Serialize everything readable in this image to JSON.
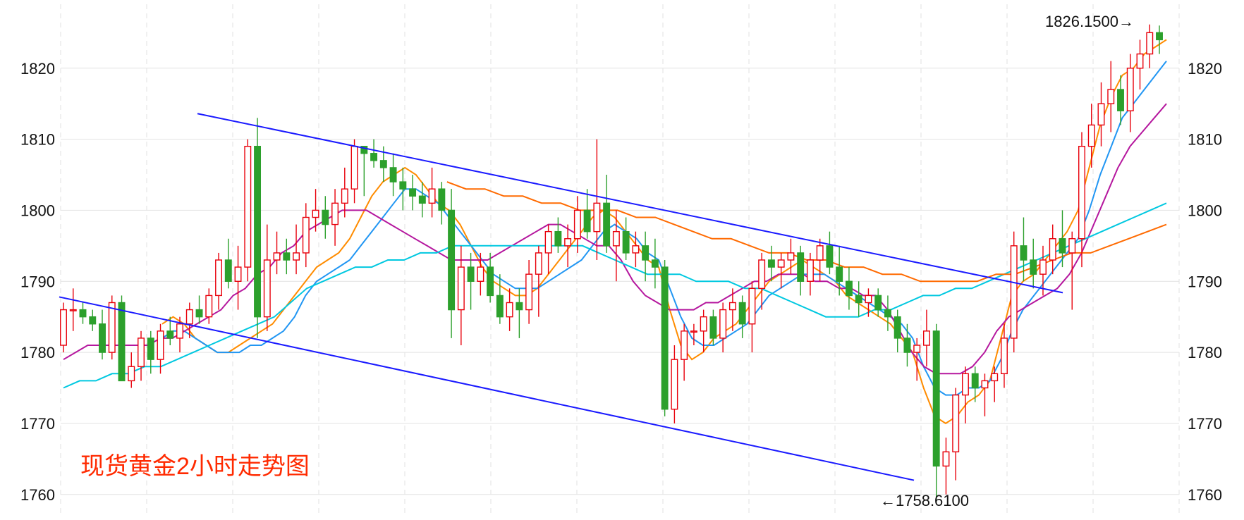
{
  "chart_data": {
    "type": "candlestick",
    "title": "现货黄金2小时走势图",
    "y_axis": {
      "min": 1757,
      "max": 1829,
      "ticks": [
        1760,
        1770,
        1780,
        1790,
        1800,
        1810,
        1820
      ],
      "tick_labels": [
        "1760",
        "1770",
        "1780",
        "1790",
        "1800",
        "1810",
        "1820"
      ],
      "grid": true
    },
    "annotations": {
      "high_label": "1826.1500→",
      "low_label": "←1758.6100",
      "high_value": 1826.15,
      "low_value": 1758.61
    },
    "colors": {
      "up": "#e8000b",
      "down": "#2ca02c",
      "trend": "#1a1aff",
      "grid": "#e2e2e2",
      "title": "#ff2a00",
      "ma": [
        "#ff8c00",
        "#2196f3",
        "#b5179e",
        "#00c8e0",
        "#ff6a00"
      ]
    },
    "trendlines": [
      {
        "name": "upper",
        "from": {
          "bar": 0,
          "value": 1813.6
        },
        "to": {
          "bar": 137,
          "value": 1788.4
        }
      },
      {
        "name": "lower",
        "from": {
          "bar": -20,
          "value": 1787.8
        },
        "to": {
          "bar": 58,
          "value": 1762.0
        }
      }
    ],
    "candles_ohlc": [
      [
        1781,
        1787,
        1780,
        1786
      ],
      [
        1786,
        1789,
        1783,
        1786
      ],
      [
        1786,
        1787,
        1784,
        1785
      ],
      [
        1785,
        1786,
        1783,
        1784
      ],
      [
        1784,
        1786,
        1779,
        1780
      ],
      [
        1780,
        1788,
        1779,
        1787
      ],
      [
        1787,
        1788,
        1776,
        1776
      ],
      [
        1776,
        1780,
        1775,
        1778
      ],
      [
        1778,
        1783,
        1776,
        1782
      ],
      [
        1782,
        1783,
        1777,
        1779
      ],
      [
        1779,
        1784,
        1777,
        1783
      ],
      [
        1783,
        1785,
        1781,
        1782
      ],
      [
        1782,
        1785,
        1780,
        1784
      ],
      [
        1784,
        1787,
        1782,
        1786
      ],
      [
        1786,
        1788,
        1784,
        1785
      ],
      [
        1785,
        1789,
        1784,
        1788
      ],
      [
        1788,
        1794,
        1786,
        1793
      ],
      [
        1793,
        1796,
        1789,
        1790
      ],
      [
        1790,
        1795,
        1786,
        1792
      ],
      [
        1792,
        1810,
        1790,
        1809
      ],
      [
        1809,
        1813,
        1782,
        1785
      ],
      [
        1785,
        1798,
        1783,
        1793
      ],
      [
        1793,
        1797,
        1791,
        1794
      ],
      [
        1794,
        1796,
        1791,
        1793
      ],
      [
        1793,
        1798,
        1791,
        1794
      ],
      [
        1794,
        1801,
        1792,
        1799
      ],
      [
        1799,
        1803,
        1797,
        1800
      ],
      [
        1800,
        1802,
        1796,
        1798
      ],
      [
        1798,
        1803,
        1795,
        1801
      ],
      [
        1801,
        1806,
        1799,
        1803
      ],
      [
        1803,
        1810,
        1801,
        1809
      ],
      [
        1809,
        1808,
        1802,
        1808
      ],
      [
        1808,
        1810,
        1806,
        1807
      ],
      [
        1807,
        1809,
        1804,
        1806
      ],
      [
        1806,
        1808,
        1802,
        1804
      ],
      [
        1804,
        1806,
        1800,
        1803
      ],
      [
        1803,
        1805,
        1800,
        1802
      ],
      [
        1802,
        1804,
        1799,
        1801
      ],
      [
        1801,
        1806,
        1799,
        1803
      ],
      [
        1803,
        1804,
        1798,
        1800
      ],
      [
        1800,
        1803,
        1782,
        1786
      ],
      [
        1786,
        1795,
        1781,
        1792
      ],
      [
        1792,
        1794,
        1786,
        1790
      ],
      [
        1790,
        1794,
        1788,
        1792
      ],
      [
        1792,
        1794,
        1787,
        1788
      ],
      [
        1788,
        1791,
        1784,
        1785
      ],
      [
        1785,
        1789,
        1783,
        1787
      ],
      [
        1787,
        1789,
        1782,
        1786
      ],
      [
        1786,
        1793,
        1784,
        1791
      ],
      [
        1791,
        1795,
        1785,
        1794
      ],
      [
        1794,
        1798,
        1791,
        1797
      ],
      [
        1797,
        1799,
        1794,
        1795
      ],
      [
        1795,
        1798,
        1792,
        1796
      ],
      [
        1796,
        1802,
        1794,
        1800
      ],
      [
        1800,
        1803,
        1796,
        1797
      ],
      [
        1797,
        1810,
        1793,
        1801
      ],
      [
        1801,
        1805,
        1794,
        1795
      ],
      [
        1795,
        1800,
        1790,
        1797
      ],
      [
        1797,
        1799,
        1793,
        1794
      ],
      [
        1794,
        1797,
        1792,
        1795
      ],
      [
        1795,
        1797,
        1790,
        1793
      ],
      [
        1793,
        1796,
        1789,
        1792
      ],
      [
        1792,
        1793,
        1771,
        1772
      ],
      [
        1772,
        1781,
        1770,
        1779
      ],
      [
        1779,
        1784,
        1776,
        1783
      ],
      [
        1783,
        1784,
        1781,
        1783
      ],
      [
        1783,
        1786,
        1780,
        1785
      ],
      [
        1785,
        1786,
        1781,
        1782
      ],
      [
        1782,
        1787,
        1780,
        1786
      ],
      [
        1786,
        1789,
        1783,
        1787
      ],
      [
        1787,
        1788,
        1782,
        1784
      ],
      [
        1784,
        1790,
        1780,
        1789
      ],
      [
        1789,
        1794,
        1786,
        1793
      ],
      [
        1793,
        1795,
        1790,
        1792
      ],
      [
        1792,
        1794,
        1789,
        1793
      ],
      [
        1793,
        1796,
        1791,
        1794
      ],
      [
        1794,
        1795,
        1788,
        1790
      ],
      [
        1790,
        1794,
        1788,
        1793
      ],
      [
        1793,
        1796,
        1790,
        1795
      ],
      [
        1795,
        1797,
        1791,
        1792
      ],
      [
        1792,
        1795,
        1788,
        1790
      ],
      [
        1790,
        1792,
        1786,
        1788
      ],
      [
        1788,
        1790,
        1785,
        1787
      ],
      [
        1787,
        1789,
        1785,
        1788
      ],
      [
        1788,
        1789,
        1785,
        1786
      ],
      [
        1786,
        1788,
        1783,
        1785
      ],
      [
        1785,
        1786,
        1780,
        1782
      ],
      [
        1782,
        1784,
        1778,
        1780
      ],
      [
        1780,
        1782,
        1776,
        1781
      ],
      [
        1781,
        1786,
        1778,
        1783
      ],
      [
        1783,
        1784,
        1759,
        1764
      ],
      [
        1764,
        1768,
        1760,
        1766
      ],
      [
        1766,
        1775,
        1762,
        1774
      ],
      [
        1774,
        1778,
        1770,
        1777
      ],
      [
        1777,
        1778,
        1773,
        1775
      ],
      [
        1775,
        1777,
        1771,
        1776
      ],
      [
        1776,
        1778,
        1773,
        1777
      ],
      [
        1777,
        1784,
        1775,
        1782
      ],
      [
        1782,
        1797,
        1780,
        1795
      ],
      [
        1795,
        1799,
        1790,
        1793
      ],
      [
        1793,
        1796,
        1789,
        1791
      ],
      [
        1791,
        1795,
        1788,
        1793
      ],
      [
        1793,
        1798,
        1791,
        1796
      ],
      [
        1796,
        1800,
        1792,
        1794
      ],
      [
        1794,
        1797,
        1786,
        1796
      ],
      [
        1796,
        1811,
        1792,
        1809
      ],
      [
        1809,
        1815,
        1806,
        1812
      ],
      [
        1812,
        1818,
        1809,
        1815
      ],
      [
        1815,
        1821,
        1811,
        1817
      ],
      [
        1817,
        1819,
        1812,
        1814
      ],
      [
        1814,
        1822,
        1811,
        1820
      ],
      [
        1820,
        1824,
        1817,
        1822
      ],
      [
        1822,
        1826.15,
        1820,
        1825
      ],
      [
        1825,
        1826,
        1822,
        1824
      ]
    ],
    "moving_averages": [
      {
        "values": [
          1784,
          1785,
          1784,
          1782,
          1781,
          1780,
          1780,
          1781,
          1782,
          1783,
          1784,
          1786,
          1788,
          1790,
          1792,
          1793,
          1794,
          1796,
          1799,
          1802,
          1804,
          1805,
          1806,
          1805,
          1803,
          1801,
          1800,
          1798,
          1795,
          1792,
          1790,
          1789,
          1788,
          1788,
          1789,
          1791,
          1793,
          1795,
          1797,
          1799,
          1800,
          1799,
          1797,
          1795,
          1793,
          1792,
          1786,
          1781,
          1779,
          1780,
          1782,
          1783,
          1784,
          1786,
          1788,
          1790,
          1791,
          1792,
          1793,
          1792,
          1791,
          1790,
          1788,
          1787,
          1786,
          1785,
          1784,
          1782,
          1780,
          1775,
          1771,
          1770,
          1771,
          1773,
          1774,
          1776,
          1782,
          1788,
          1790,
          1791,
          1793,
          1795,
          1797,
          1800,
          1806,
          1812,
          1816,
          1819,
          1820,
          1822,
          1823,
          1824
        ]
      },
      {
        "values": [
          1782,
          1783,
          1783,
          1782,
          1781,
          1780,
          1780,
          1780,
          1781,
          1781,
          1782,
          1783,
          1785,
          1788,
          1790,
          1791,
          1792,
          1793,
          1795,
          1797,
          1799,
          1801,
          1803,
          1803,
          1802,
          1801,
          1799,
          1797,
          1795,
          1793,
          1791,
          1790,
          1789,
          1789,
          1789,
          1790,
          1791,
          1792,
          1793,
          1795,
          1797,
          1798,
          1797,
          1796,
          1794,
          1793,
          1789,
          1785,
          1782,
          1781,
          1781,
          1782,
          1783,
          1784,
          1786,
          1788,
          1789,
          1790,
          1791,
          1791,
          1791,
          1790,
          1789,
          1788,
          1787,
          1786,
          1785,
          1784,
          1782,
          1778,
          1775,
          1774,
          1774,
          1775,
          1775,
          1776,
          1779,
          1783,
          1786,
          1788,
          1790,
          1792,
          1794,
          1796,
          1800,
          1805,
          1809,
          1813,
          1815,
          1817,
          1819,
          1821
        ]
      },
      {
        "values": [
          1779,
          1780,
          1781,
          1781,
          1781,
          1781,
          1781,
          1781,
          1782,
          1782,
          1783,
          1784,
          1785,
          1786,
          1788,
          1789,
          1791,
          1792,
          1794,
          1795,
          1797,
          1798,
          1799,
          1800,
          1800,
          1800,
          1799,
          1798,
          1797,
          1796,
          1795,
          1794,
          1793,
          1793,
          1793,
          1793,
          1794,
          1795,
          1796,
          1797,
          1798,
          1798,
          1797,
          1796,
          1795,
          1795,
          1793,
          1790,
          1788,
          1787,
          1786,
          1786,
          1786,
          1787,
          1787,
          1788,
          1789,
          1790,
          1790,
          1791,
          1791,
          1791,
          1790,
          1790,
          1789,
          1789,
          1788,
          1788,
          1786,
          1783,
          1780,
          1778,
          1777,
          1777,
          1777,
          1778,
          1780,
          1783,
          1785,
          1786,
          1787,
          1788,
          1789,
          1791,
          1794,
          1798,
          1802,
          1806,
          1809,
          1811,
          1813,
          1815
        ]
      },
      {
        "values": [
          1775,
          1776,
          1776,
          1777,
          1777,
          1778,
          1778,
          1779,
          1780,
          1781,
          1782,
          1783,
          1784,
          1785,
          1787,
          1789,
          1790,
          1791,
          1792,
          1792,
          1793,
          1793,
          1794,
          1794,
          1795,
          1795,
          1795,
          1795,
          1795,
          1795,
          1795,
          1795,
          1795,
          1794,
          1793,
          1792,
          1791,
          1791,
          1791,
          1790,
          1790,
          1790,
          1789,
          1789,
          1788,
          1787,
          1786,
          1785,
          1785,
          1785,
          1786,
          1786,
          1787,
          1788,
          1788,
          1789,
          1789,
          1790,
          1791,
          1792,
          1793,
          1794,
          1795,
          1796,
          1797,
          1798,
          1799,
          1800,
          1801
        ]
      },
      {
        "values": [
          1804,
          1803,
          1803,
          1802,
          1802,
          1801,
          1801,
          1800,
          1800,
          1800,
          1799,
          1799,
          1798,
          1797,
          1796,
          1796,
          1795,
          1794,
          1794,
          1793,
          1793,
          1792,
          1792,
          1791,
          1791,
          1790,
          1790,
          1790,
          1790,
          1791,
          1791,
          1792,
          1793,
          1794,
          1794,
          1795,
          1796,
          1797,
          1798
        ]
      }
    ]
  }
}
